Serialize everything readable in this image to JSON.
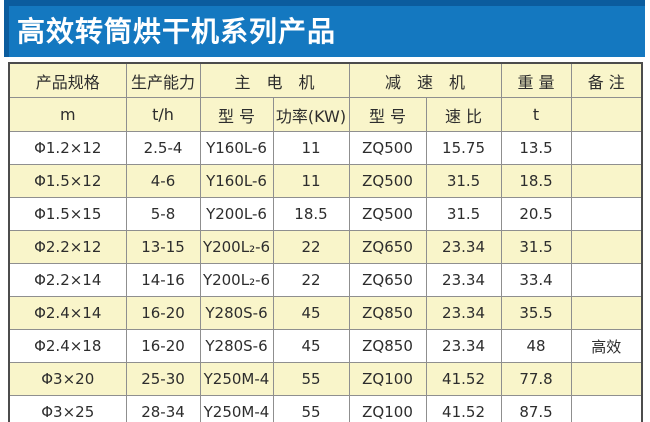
{
  "title": "高效转筒烘干机系列产品",
  "colors": {
    "title_bar_bg": "#1478c0",
    "title_bar_dark": "#0b5c9e",
    "header_bg": "#f9f5ca",
    "row_bg": "#ffffff",
    "row_alt_bg": "#f9f5ca",
    "grid_line": "#8f8f8f",
    "outer_border": "#4c4c4c"
  },
  "table": {
    "header_groups": {
      "spec": "产品规格",
      "capacity": "生产能力",
      "main_motor": "主电机",
      "reducer": "减速机",
      "weight": "重量",
      "remark": "备注"
    },
    "subheaders": {
      "spec_unit": "m",
      "capacity_unit": "t/h",
      "motor_model": "型号",
      "motor_power": "功率(KW)",
      "reducer_model": "型号",
      "reducer_ratio": "速比",
      "weight_unit": "t",
      "remark": ""
    },
    "column_keys": [
      "spec",
      "capacity",
      "motor-model",
      "motor-power",
      "reducer-model",
      "reducer-ratio",
      "weight",
      "remark"
    ],
    "rows": [
      [
        "Φ1.2×12",
        "2.5-4",
        "Y160L-6",
        "11",
        "ZQ500",
        "15.75",
        "13.5",
        ""
      ],
      [
        "Φ1.5×12",
        "4-6",
        "Y160L-6",
        "11",
        "ZQ500",
        "31.5",
        "18.5",
        ""
      ],
      [
        "Φ1.5×15",
        "5-8",
        "Y200L-6",
        "18.5",
        "ZQ500",
        "31.5",
        "20.5",
        ""
      ],
      [
        "Φ2.2×12",
        "13-15",
        "Y200L₂-6",
        "22",
        "ZQ650",
        "23.34",
        "31.5",
        ""
      ],
      [
        "Φ2.2×14",
        "14-16",
        "Y200L₂-6",
        "22",
        "ZQ650",
        "23.34",
        "33.4",
        ""
      ],
      [
        "Φ2.4×14",
        "16-20",
        "Y280S-6",
        "45",
        "ZQ850",
        "23.34",
        "35.5",
        ""
      ],
      [
        "Φ2.4×18",
        "16-20",
        "Y280S-6",
        "45",
        "ZQ850",
        "23.34",
        "48",
        "高效"
      ],
      [
        "Φ3×20",
        "25-30",
        "Y250M-4",
        "55",
        "ZQ100",
        "41.52",
        "77.8",
        ""
      ],
      [
        "Φ3×25",
        "28-34",
        "Y250M-4",
        "55",
        "ZQ100",
        "41.52",
        "87.5",
        ""
      ]
    ]
  }
}
